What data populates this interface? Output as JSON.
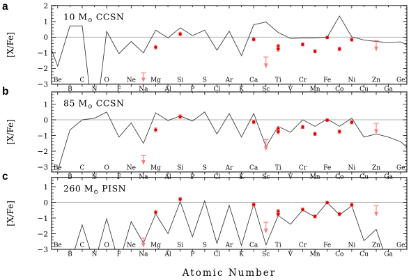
{
  "figure": {
    "xlabel": "Atomic Number",
    "ylabel": "[X/Fe]",
    "panel_letters": [
      "a",
      "b",
      "c"
    ],
    "colors": {
      "model_line": "#3c3c3c",
      "zero_line": "#b0b0b0",
      "frame": "#000000",
      "data_point": "#e60000",
      "error_bar": "#ff7a7a",
      "background": "#ffffff"
    },
    "elements": [
      [
        "Be",
        4
      ],
      [
        "B",
        5
      ],
      [
        "C",
        6
      ],
      [
        "N",
        7
      ],
      [
        "O",
        8
      ],
      [
        "F",
        9
      ],
      [
        "Ne",
        10
      ],
      [
        "Na",
        11
      ],
      [
        "Mg",
        12
      ],
      [
        "Al",
        13
      ],
      [
        "Si",
        14
      ],
      [
        "P",
        15
      ],
      [
        "S",
        16
      ],
      [
        "Cl",
        17
      ],
      [
        "Ar",
        18
      ],
      [
        "K",
        19
      ],
      [
        "Ca",
        20
      ],
      [
        "Sc",
        21
      ],
      [
        "Ti",
        22
      ],
      [
        "V",
        23
      ],
      [
        "Cr",
        24
      ],
      [
        "Mn",
        25
      ],
      [
        "Fe",
        26
      ],
      [
        "Co",
        27
      ],
      [
        "Ni",
        28
      ],
      [
        "Cu",
        29
      ],
      [
        "Zn",
        30
      ],
      [
        "Ga",
        31
      ],
      [
        "Ge",
        32
      ]
    ]
  },
  "chart_data": [
    {
      "type": "line",
      "panel": "a",
      "title": "10 M⊙ CCSN",
      "xlabel": "Atomic Number",
      "ylabel": "[X/Fe]",
      "y_domain": [
        -3.0,
        2.02
      ],
      "y_ticks": [
        2,
        1,
        0,
        -1,
        -2,
        -3
      ],
      "y_tick_labels": [
        "2",
        "1",
        "0",
        "−1",
        "−2",
        "−3"
      ],
      "x": [
        4,
        5,
        6,
        7,
        8,
        9,
        10,
        11,
        12,
        13,
        14,
        15,
        16,
        17,
        18,
        19,
        20,
        21,
        22,
        23,
        24,
        25,
        26,
        27,
        28,
        29,
        30,
        31,
        32
      ],
      "model": [
        -1.85,
        0.72,
        0.72,
        -6.0,
        0.37,
        -1.05,
        -0.27,
        -1.0,
        0.45,
        -0.05,
        0.6,
        0.1,
        0.45,
        -0.83,
        0.38,
        -1.18,
        0.8,
        0.97,
        0.3,
        -0.08,
        -0.05,
        -0.05,
        0.0,
        1.35,
        0.02,
        -0.18,
        -0.27,
        -0.35,
        -0.3
      ],
      "edge_start": [
        3.5,
        -0.8
      ],
      "edge_end": [
        32.5,
        -0.5
      ]
    },
    {
      "type": "line",
      "panel": "b",
      "title": "85 M⊙ CCSN",
      "xlabel": "Atomic Number",
      "ylabel": "[X/Fe]",
      "y_domain": [
        -3.33,
        1.78
      ],
      "y_ticks": [
        1,
        0,
        -1,
        -2,
        -3
      ],
      "y_tick_labels": [
        "1",
        "0",
        "−1",
        "−2",
        "−3"
      ],
      "x": [
        4,
        5,
        6,
        7,
        8,
        9,
        10,
        11,
        12,
        13,
        14,
        15,
        16,
        17,
        18,
        19,
        20,
        21,
        22,
        23,
        24,
        25,
        26,
        27,
        28,
        29,
        30,
        31,
        32
      ],
      "model": [
        -3.25,
        -0.65,
        0.0,
        0.1,
        0.5,
        -1.1,
        -0.2,
        -1.5,
        0.45,
        -0.05,
        0.25,
        -0.08,
        0.5,
        -0.9,
        0.4,
        -1.1,
        0.4,
        -1.72,
        -0.42,
        -0.8,
        0.0,
        -0.42,
        0.05,
        -0.42,
        0.1,
        -1.1,
        -0.9,
        -1.1,
        -1.4
      ],
      "edge_start": null,
      "edge_end": [
        32.5,
        -1.75
      ]
    },
    {
      "type": "line",
      "panel": "c",
      "title": "260 M⊙ PISN",
      "xlabel": "Atomic Number",
      "ylabel": "[X/Fe]",
      "y_domain": [
        -3.0,
        1.59
      ],
      "y_ticks": [
        1,
        0,
        -1,
        -2,
        -3
      ],
      "y_tick_labels": [
        "1",
        "0",
        "−1",
        "−2",
        "−3"
      ],
      "x": [
        4,
        5,
        6,
        7,
        8,
        9,
        10,
        11,
        12,
        13,
        14,
        15,
        16,
        17,
        18,
        19,
        20,
        21,
        22,
        23,
        24,
        25,
        26,
        27,
        28,
        29,
        30,
        31,
        32
      ],
      "model": [
        -4.0,
        -4.0,
        -1.44,
        -3.9,
        -1.04,
        -3.9,
        -1.23,
        -2.6,
        -0.74,
        -2.0,
        0.05,
        -2.2,
        0.1,
        -2.62,
        -0.19,
        -2.75,
        -0.1,
        -2.72,
        -0.84,
        -1.4,
        -0.49,
        -0.93,
        -0.02,
        -0.8,
        -0.22,
        -2.45,
        -1.73,
        -4.0,
        -4.0
      ],
      "edge_start": null,
      "edge_end": null
    }
  ],
  "observations": {
    "description": "red filled circles with error bars (same star data repeated in every panel)",
    "points": [
      {
        "el": "Mg",
        "z": 12,
        "v": -0.64,
        "err": 0.13
      },
      {
        "el": "Si",
        "z": 14,
        "v": 0.2,
        "err": 0.12
      },
      {
        "el": "Ca",
        "z": 20,
        "v": -0.14,
        "err": 0.1
      },
      {
        "el": "Ti",
        "z": 22,
        "v": -0.58,
        "err": 0.12
      },
      {
        "el": "TiII",
        "z": 22,
        "v": -0.76,
        "err": 0.14
      },
      {
        "el": "Cr",
        "z": 24,
        "v": -0.46,
        "err": 0.1
      },
      {
        "el": "Mn",
        "z": 25,
        "v": -0.9,
        "err": 0.1
      },
      {
        "el": "Fe",
        "z": 26,
        "v": -0.02,
        "err": 0.08
      },
      {
        "el": "Co",
        "z": 27,
        "v": -0.75,
        "err": 0.11
      },
      {
        "el": "Ni",
        "z": 28,
        "v": -0.16,
        "err": 0.1
      }
    ],
    "upper_limits": [
      {
        "el": "Na",
        "z": 11,
        "from": -2.28,
        "to": -2.8
      },
      {
        "el": "Sc",
        "z": 21,
        "from": -1.27,
        "to": -1.9
      },
      {
        "el": "Zn",
        "z": 30,
        "from": -0.22,
        "to": -0.82
      }
    ]
  }
}
